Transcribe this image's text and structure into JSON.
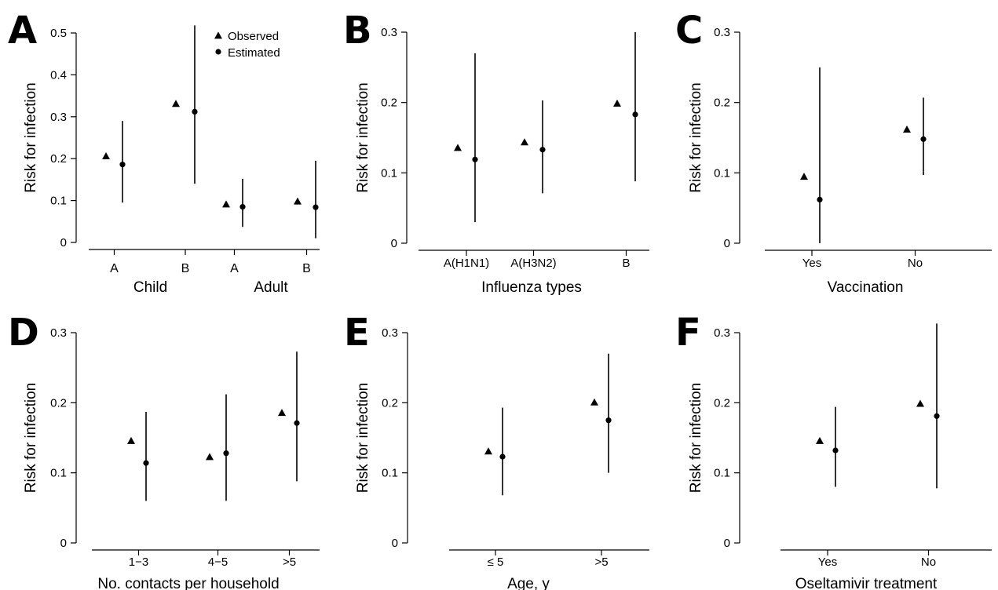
{
  "colors": {
    "ink": "#000000",
    "background": "#ffffff"
  },
  "legend": [
    {
      "label": "Observed",
      "marker": "triangle"
    },
    {
      "label": "Estimated",
      "marker": "circle"
    }
  ],
  "chart_data": [
    {
      "panel": "A",
      "type": "scatter",
      "ylabel": "Risk for infection",
      "xlabel": "",
      "ylim": [
        0,
        0.5
      ],
      "yticks": [
        0,
        0.1,
        0.2,
        0.3,
        0.4,
        0.5
      ],
      "ytick_labels": [
        "0",
        "0.1",
        "0.2",
        "0.3",
        "0.4",
        "0.5"
      ],
      "categories": [
        "A",
        "B",
        "A",
        "B"
      ],
      "group_labels": [
        "Child",
        "Adult"
      ],
      "observed": [
        0.205,
        0.33,
        0.09,
        0.097
      ],
      "estimated": [
        0.186,
        0.312,
        0.085,
        0.084
      ],
      "ci_low": [
        0.095,
        0.14,
        0.037,
        0.01
      ],
      "ci_high": [
        0.29,
        0.518,
        0.152,
        0.195
      ],
      "legend_position": "top-right"
    },
    {
      "panel": "B",
      "type": "scatter",
      "ylabel": "Risk for infection",
      "xlabel": "Influenza types",
      "ylim": [
        0,
        0.3
      ],
      "yticks": [
        0,
        0.1,
        0.2,
        0.3
      ],
      "ytick_labels": [
        "0",
        "0.1",
        "0.2",
        "0.3"
      ],
      "categories": [
        "A(H1N1)",
        "A(H3N2)",
        "B"
      ],
      "observed": [
        0.135,
        0.143,
        0.198
      ],
      "estimated": [
        0.119,
        0.133,
        0.183
      ],
      "ci_low": [
        0.03,
        0.071,
        0.088
      ],
      "ci_high": [
        0.27,
        0.203,
        0.3
      ]
    },
    {
      "panel": "C",
      "type": "scatter",
      "ylabel": "Risk for infection",
      "xlabel": "Vaccination",
      "ylim": [
        0,
        0.3
      ],
      "yticks": [
        0,
        0.1,
        0.2,
        0.3
      ],
      "ytick_labels": [
        "0",
        "0.1",
        "0.2",
        "0.3"
      ],
      "categories": [
        "Yes",
        "No"
      ],
      "observed": [
        0.094,
        0.161
      ],
      "estimated": [
        0.062,
        0.148
      ],
      "ci_low": [
        0,
        0.097
      ],
      "ci_high": [
        0.25,
        0.207
      ]
    },
    {
      "panel": "D",
      "type": "scatter",
      "ylabel": "Risk for infection",
      "xlabel": "No. contacts per household",
      "ylim": [
        0,
        0.3
      ],
      "yticks": [
        0,
        0.1,
        0.2,
        0.3
      ],
      "ytick_labels": [
        "0",
        "0.1",
        "0.2",
        "0.3"
      ],
      "categories": [
        "1−3",
        "4−5",
        ">5"
      ],
      "observed": [
        0.145,
        0.122,
        0.185
      ],
      "estimated": [
        0.114,
        0.128,
        0.171
      ],
      "ci_low": [
        0.06,
        0.06,
        0.088
      ],
      "ci_high": [
        0.187,
        0.212,
        0.273
      ]
    },
    {
      "panel": "E",
      "type": "scatter",
      "ylabel": "Risk for infection",
      "xlabel": "Age, y",
      "ylim": [
        0,
        0.3
      ],
      "yticks": [
        0,
        0.1,
        0.2,
        0.3
      ],
      "ytick_labels": [
        "0",
        "0.1",
        "0.2",
        "0.3"
      ],
      "categories": [
        "≤ 5",
        ">5"
      ],
      "observed": [
        0.13,
        0.2
      ],
      "estimated": [
        0.123,
        0.175
      ],
      "ci_low": [
        0.068,
        0.1
      ],
      "ci_high": [
        0.193,
        0.27
      ]
    },
    {
      "panel": "F",
      "type": "scatter",
      "ylabel": "Risk for infection",
      "xlabel": "Oseltamivir treatment",
      "ylim": [
        0,
        0.3
      ],
      "yticks": [
        0,
        0.1,
        0.2,
        0.3
      ],
      "ytick_labels": [
        "0",
        "0.1",
        "0.2",
        "0.3"
      ],
      "categories": [
        "Yes",
        "No"
      ],
      "observed": [
        0.145,
        0.198
      ],
      "estimated": [
        0.132,
        0.181
      ],
      "ci_low": [
        0.08,
        0.078
      ],
      "ci_high": [
        0.194,
        0.313
      ]
    }
  ]
}
